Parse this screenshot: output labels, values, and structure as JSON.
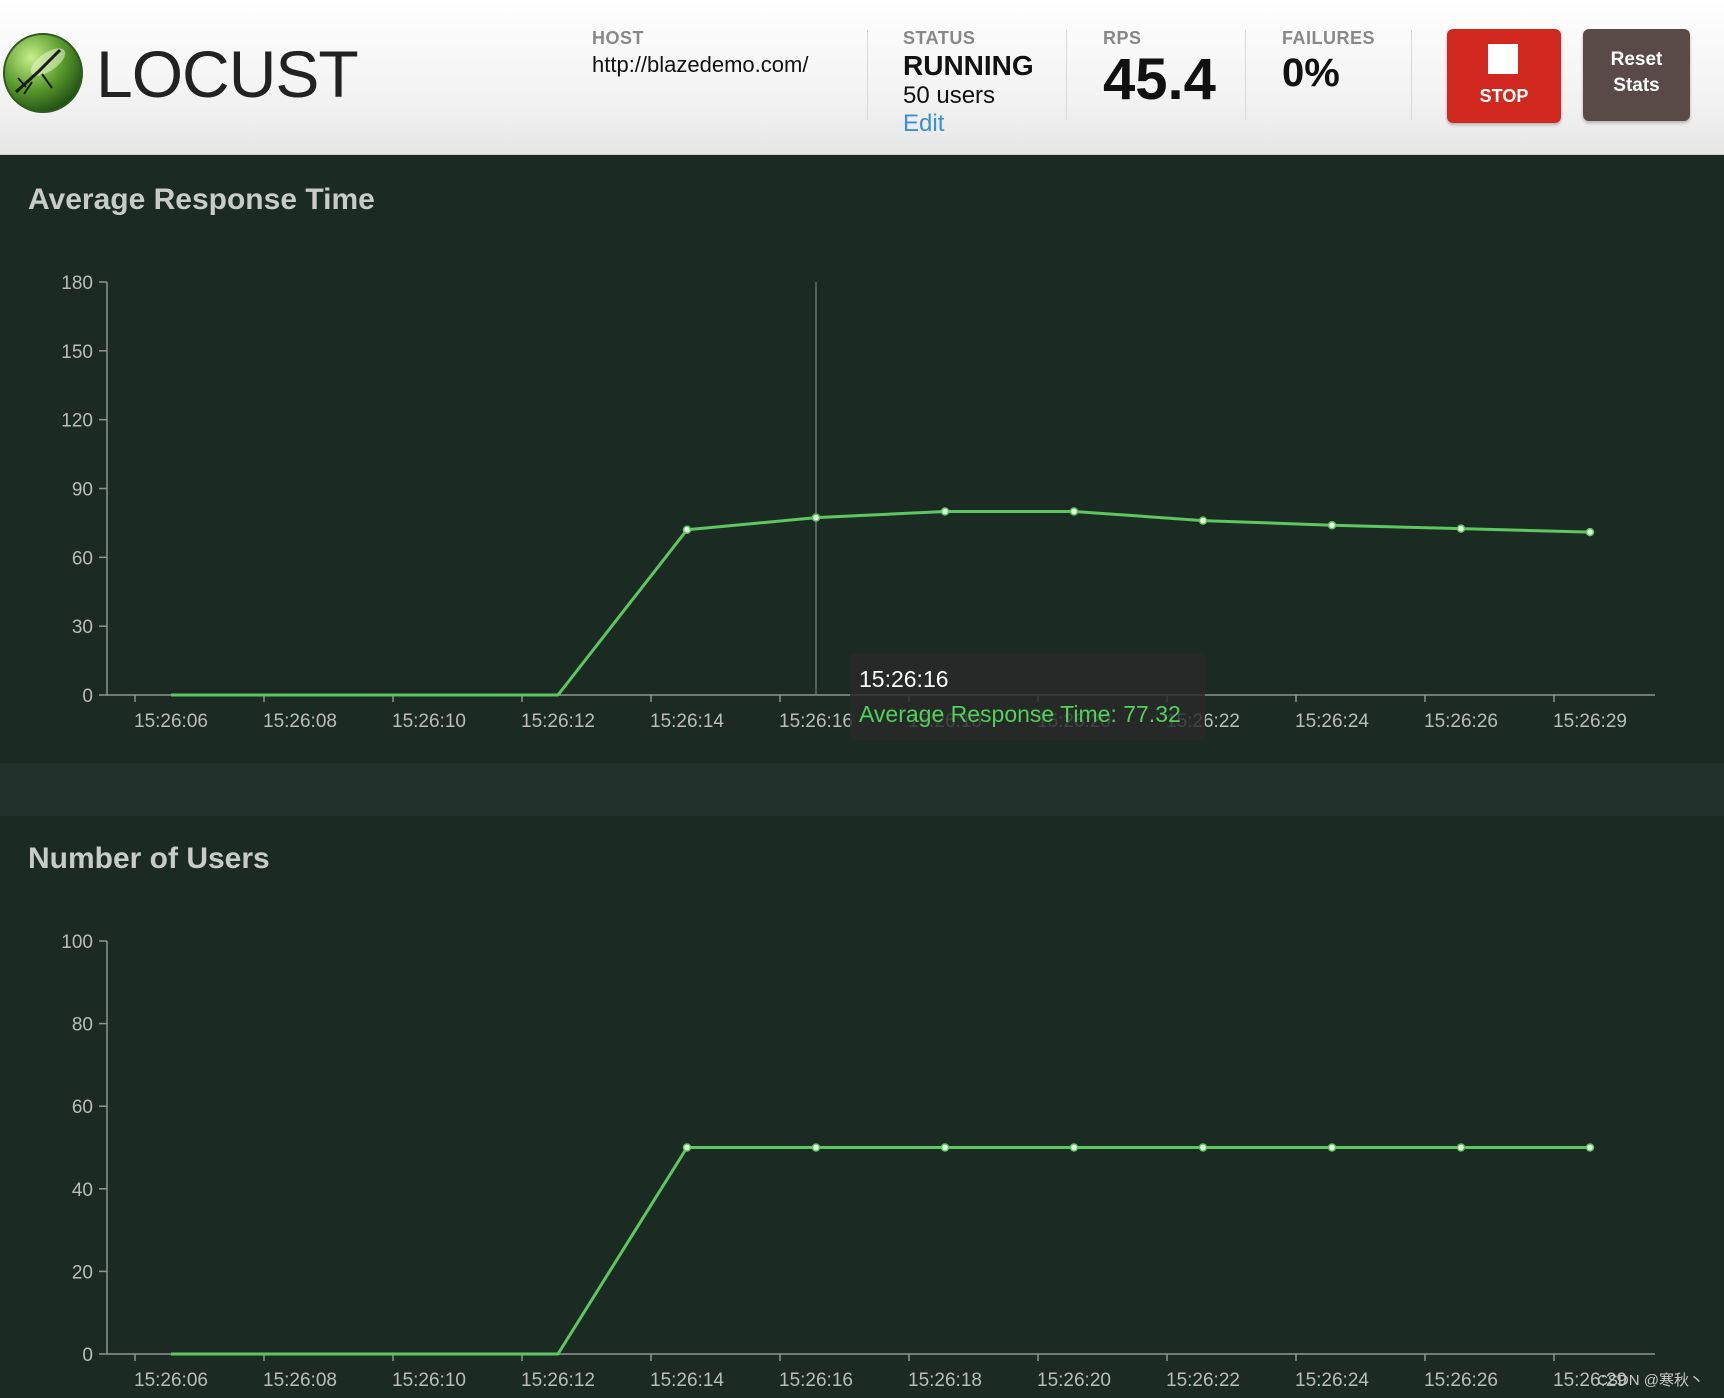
{
  "header": {
    "logo_text": "LOCUST",
    "host": {
      "label": "HOST",
      "value": "http://blazedemo.com/"
    },
    "status": {
      "label": "STATUS",
      "value": "RUNNING",
      "users": "50 users",
      "edit": "Edit"
    },
    "rps": {
      "label": "RPS",
      "value": "45.4"
    },
    "failures": {
      "label": "FAILURES",
      "value": "0%"
    },
    "stop_label": "STOP",
    "reset_label_1": "Reset",
    "reset_label_2": "Stats",
    "stop_color": "#d0281f",
    "reset_color": "#5a4a47",
    "edit_color": "#3b8fd6"
  },
  "panels": {
    "response": {
      "title": "Average Response Time"
    },
    "users": {
      "title": "Number of Users"
    }
  },
  "tooltip": {
    "time": "15:26:16",
    "text": "Average Response Time: 77.32"
  },
  "watermark": "CSDN @寒秋丶",
  "chart_data": [
    {
      "type": "line",
      "title": "Average Response Time",
      "categories": [
        "15:26:06",
        "15:26:08",
        "15:26:10",
        "15:26:12",
        "15:26:14",
        "15:26:16",
        "15:26:18",
        "15:26:20",
        "15:26:22",
        "15:26:24",
        "15:26:26",
        "15:26:29"
      ],
      "values": [
        0,
        0,
        0,
        0,
        72,
        77.32,
        80,
        80,
        76,
        74,
        72.5,
        71
      ],
      "ylim": [
        0,
        180
      ],
      "yticks": [
        0,
        30,
        60,
        90,
        120,
        150,
        180
      ],
      "line_color": "#5cc75e",
      "hover_index": 5
    },
    {
      "type": "line",
      "title": "Number of Users",
      "categories": [
        "15:26:06",
        "15:26:08",
        "15:26:10",
        "15:26:12",
        "15:26:14",
        "15:26:16",
        "15:26:18",
        "15:26:20",
        "15:26:22",
        "15:26:24",
        "15:26:26",
        "15:26:29"
      ],
      "values": [
        0,
        0,
        0,
        0,
        50,
        50,
        50,
        50,
        50,
        50,
        50,
        50
      ],
      "ylim": [
        0,
        100
      ],
      "yticks": [
        0,
        20,
        40,
        60,
        80,
        100
      ],
      "line_color": "#5cc75e"
    }
  ]
}
